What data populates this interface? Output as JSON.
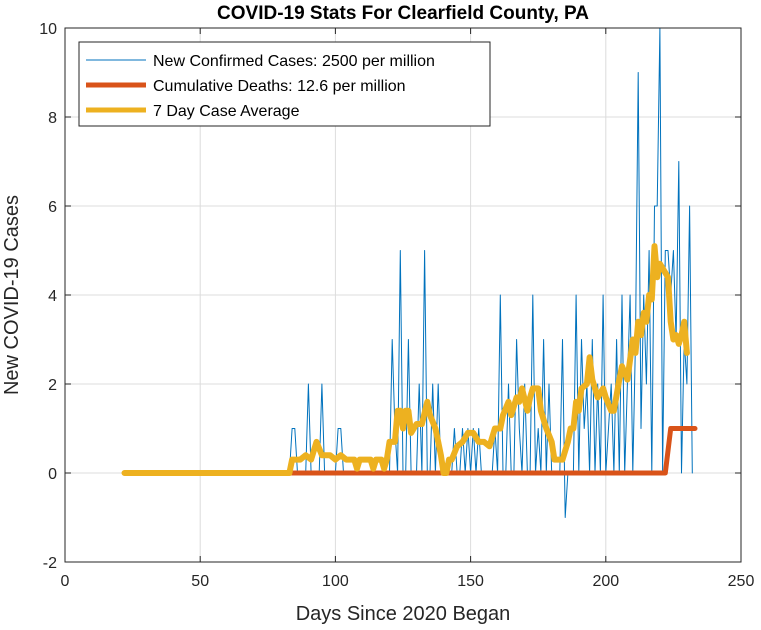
{
  "chart_data": {
    "type": "line",
    "title": "COVID-19 Stats For Clearfield County, PA",
    "xlabel": "Days Since 2020 Began",
    "ylabel": "New COVID-19 Cases",
    "xlim": [
      0,
      250
    ],
    "ylim": [
      -2,
      10
    ],
    "xticks": [
      0,
      50,
      100,
      150,
      200,
      250
    ],
    "yticks": [
      -2,
      0,
      2,
      4,
      6,
      8,
      10
    ],
    "grid": true,
    "legend_position": "top-left",
    "series": [
      {
        "name": "New Confirmed Cases: 2500 per million",
        "color": "#0072BD",
        "values": [
          [
            22,
            0
          ],
          [
            83,
            0
          ],
          [
            84,
            1
          ],
          [
            85,
            1
          ],
          [
            86,
            0
          ],
          [
            87,
            0
          ],
          [
            88,
            0
          ],
          [
            89,
            0
          ],
          [
            90,
            2
          ],
          [
            91,
            0
          ],
          [
            92,
            0
          ],
          [
            93,
            0
          ],
          [
            94,
            0
          ],
          [
            95,
            2
          ],
          [
            96,
            0
          ],
          [
            97,
            0
          ],
          [
            98,
            0
          ],
          [
            99,
            0
          ],
          [
            100,
            0
          ],
          [
            101,
            1
          ],
          [
            102,
            1
          ],
          [
            103,
            0
          ],
          [
            104,
            0
          ],
          [
            105,
            0
          ],
          [
            106,
            0
          ],
          [
            107,
            0
          ],
          [
            108,
            0
          ],
          [
            109,
            0
          ],
          [
            110,
            0
          ],
          [
            111,
            0
          ],
          [
            112,
            0
          ],
          [
            113,
            0
          ],
          [
            114,
            0
          ],
          [
            115,
            0
          ],
          [
            116,
            0
          ],
          [
            117,
            0
          ],
          [
            118,
            0
          ],
          [
            119,
            0
          ],
          [
            120,
            0
          ],
          [
            121,
            3
          ],
          [
            122,
            1
          ],
          [
            123,
            0
          ],
          [
            124,
            5
          ],
          [
            125,
            0
          ],
          [
            126,
            0
          ],
          [
            127,
            3
          ],
          [
            128,
            0
          ],
          [
            129,
            0
          ],
          [
            130,
            0
          ],
          [
            131,
            2
          ],
          [
            132,
            0
          ],
          [
            133,
            5
          ],
          [
            134,
            0
          ],
          [
            135,
            0
          ],
          [
            136,
            2
          ],
          [
            137,
            0
          ],
          [
            138,
            2
          ],
          [
            139,
            0
          ],
          [
            140,
            0
          ],
          [
            141,
            0
          ],
          [
            142,
            0
          ],
          [
            143,
            0
          ],
          [
            144,
            1
          ],
          [
            145,
            0
          ],
          [
            146,
            0
          ],
          [
            147,
            1
          ],
          [
            148,
            0
          ],
          [
            149,
            1
          ],
          [
            150,
            0
          ],
          [
            151,
            1
          ],
          [
            152,
            0
          ],
          [
            153,
            1
          ],
          [
            154,
            0
          ],
          [
            155,
            0
          ],
          [
            156,
            0
          ],
          [
            157,
            0
          ],
          [
            158,
            0
          ],
          [
            159,
            1
          ],
          [
            160,
            0
          ],
          [
            161,
            4
          ],
          [
            162,
            0
          ],
          [
            163,
            0
          ],
          [
            164,
            2
          ],
          [
            165,
            0
          ],
          [
            166,
            0
          ],
          [
            167,
            3
          ],
          [
            168,
            1
          ],
          [
            169,
            0
          ],
          [
            170,
            2
          ],
          [
            171,
            0
          ],
          [
            172,
            0
          ],
          [
            173,
            4
          ],
          [
            174,
            0
          ],
          [
            175,
            1
          ],
          [
            176,
            0
          ],
          [
            177,
            3
          ],
          [
            178,
            0
          ],
          [
            179,
            2
          ],
          [
            180,
            0
          ],
          [
            181,
            0
          ],
          [
            182,
            0
          ],
          [
            183,
            0
          ],
          [
            184,
            3
          ],
          [
            185,
            -1
          ],
          [
            186,
            0
          ],
          [
            187,
            0
          ],
          [
            188,
            0
          ],
          [
            189,
            4
          ],
          [
            190,
            0
          ],
          [
            191,
            3
          ],
          [
            192,
            1
          ],
          [
            193,
            2
          ],
          [
            194,
            0
          ],
          [
            195,
            3
          ],
          [
            196,
            0
          ],
          [
            197,
            2
          ],
          [
            198,
            0
          ],
          [
            199,
            4
          ],
          [
            200,
            0
          ],
          [
            201,
            1
          ],
          [
            202,
            2
          ],
          [
            203,
            0
          ],
          [
            204,
            3
          ],
          [
            205,
            0
          ],
          [
            206,
            4
          ],
          [
            207,
            0
          ],
          [
            208,
            2
          ],
          [
            209,
            4
          ],
          [
            210,
            0
          ],
          [
            211,
            3
          ],
          [
            212,
            9
          ],
          [
            213,
            1
          ],
          [
            214,
            4
          ],
          [
            215,
            2
          ],
          [
            216,
            5
          ],
          [
            217,
            0
          ],
          [
            218,
            6
          ],
          [
            219,
            6
          ],
          [
            220,
            10
          ],
          [
            221,
            0
          ],
          [
            222,
            5
          ],
          [
            223,
            5
          ],
          [
            224,
            4
          ],
          [
            225,
            5
          ],
          [
            226,
            3
          ],
          [
            227,
            7
          ],
          [
            228,
            0
          ],
          [
            229,
            3
          ],
          [
            230,
            2
          ],
          [
            231,
            6
          ],
          [
            232,
            0
          ]
        ]
      },
      {
        "name": "Cumulative Deaths: 12.6 per million",
        "color": "#D95319",
        "values": [
          [
            22,
            0
          ],
          [
            84,
            0
          ],
          [
            222,
            0
          ],
          [
            224,
            1
          ],
          [
            233,
            1
          ]
        ]
      },
      {
        "name": "7 Day Case Average",
        "color": "#EDB120",
        "values": [
          [
            22,
            0
          ],
          [
            83,
            0
          ],
          [
            84,
            0.3
          ],
          [
            87,
            0.3
          ],
          [
            89,
            0.4
          ],
          [
            91,
            0.3
          ],
          [
            93,
            0.7
          ],
          [
            95,
            0.4
          ],
          [
            98,
            0.4
          ],
          [
            100,
            0.3
          ],
          [
            102,
            0.4
          ],
          [
            104,
            0.3
          ],
          [
            107,
            0.3
          ],
          [
            108,
            0.1
          ],
          [
            109,
            0.3
          ],
          [
            111,
            0.3
          ],
          [
            113,
            0.3
          ],
          [
            114,
            0.1
          ],
          [
            115,
            0.3
          ],
          [
            117,
            0.3
          ],
          [
            118,
            0.1
          ],
          [
            119,
            0.3
          ],
          [
            120,
            0.7
          ],
          [
            122,
            0.7
          ],
          [
            123,
            1.4
          ],
          [
            124,
            1.4
          ],
          [
            125,
            1.0
          ],
          [
            126,
            1.4
          ],
          [
            127,
            1.4
          ],
          [
            128,
            0.9
          ],
          [
            130,
            1.1
          ],
          [
            132,
            1.1
          ],
          [
            134,
            1.6
          ],
          [
            135,
            1.3
          ],
          [
            137,
            1.0
          ],
          [
            138,
            0.7
          ],
          [
            139,
            0.4
          ],
          [
            140,
            0.0
          ],
          [
            141,
            0.0
          ],
          [
            142,
            0.3
          ],
          [
            143,
            0.3
          ],
          [
            145,
            0.6
          ],
          [
            147,
            0.7
          ],
          [
            149,
            0.9
          ],
          [
            151,
            0.9
          ],
          [
            153,
            0.7
          ],
          [
            155,
            0.7
          ],
          [
            157,
            0.6
          ],
          [
            159,
            1.0
          ],
          [
            161,
            1.0
          ],
          [
            162,
            1.3
          ],
          [
            164,
            1.6
          ],
          [
            165,
            1.3
          ],
          [
            167,
            1.7
          ],
          [
            168,
            1.6
          ],
          [
            169,
            1.9
          ],
          [
            171,
            1.4
          ],
          [
            172,
            1.7
          ],
          [
            173,
            1.9
          ],
          [
            175,
            1.9
          ],
          [
            176,
            1.4
          ],
          [
            178,
            1.0
          ],
          [
            180,
            0.7
          ],
          [
            181,
            0.3
          ],
          [
            183,
            0.3
          ],
          [
            184,
            0.3
          ],
          [
            186,
            0.7
          ],
          [
            187,
            1.0
          ],
          [
            188,
            1.0
          ],
          [
            189,
            1.6
          ],
          [
            190,
            1.4
          ],
          [
            191,
            1.9
          ],
          [
            193,
            2.0
          ],
          [
            194,
            2.6
          ],
          [
            195,
            2.1
          ],
          [
            197,
            1.7
          ],
          [
            199,
            1.9
          ],
          [
            200,
            1.7
          ],
          [
            202,
            1.4
          ],
          [
            203,
            1.4
          ],
          [
            205,
            2.1
          ],
          [
            206,
            2.4
          ],
          [
            208,
            2.1
          ],
          [
            210,
            3.0
          ],
          [
            211,
            2.7
          ],
          [
            212,
            3.4
          ],
          [
            213,
            3.1
          ],
          [
            214,
            3.6
          ],
          [
            215,
            3.4
          ],
          [
            216,
            4.0
          ],
          [
            217,
            3.9
          ],
          [
            218,
            5.1
          ],
          [
            219,
            4.4
          ],
          [
            220,
            4.7
          ],
          [
            221,
            4.6
          ],
          [
            223,
            4.4
          ],
          [
            224,
            3.4
          ],
          [
            225,
            3.0
          ],
          [
            226,
            3.1
          ],
          [
            227,
            2.9
          ],
          [
            228,
            3.1
          ],
          [
            229,
            3.4
          ],
          [
            230,
            2.7
          ]
        ]
      }
    ]
  }
}
